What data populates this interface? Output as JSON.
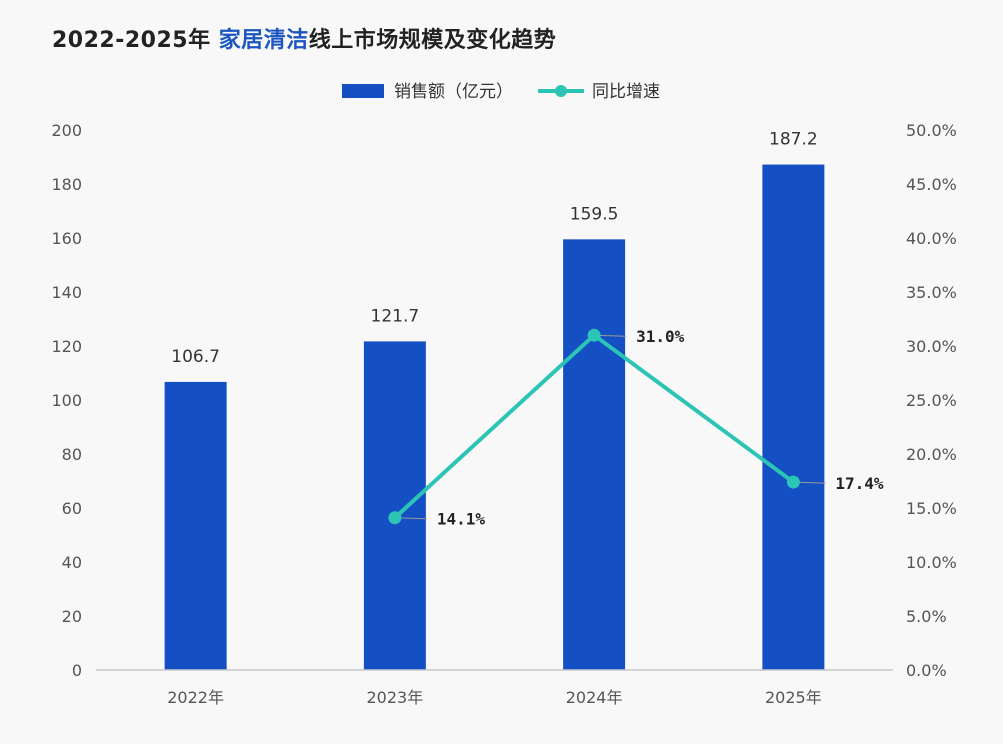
{
  "title": {
    "prefix": "2022-2025年 ",
    "highlight": "家居清洁",
    "suffix": "线上市场规模及变化趋势",
    "highlight_color": "#1a55c0"
  },
  "chart_data": {
    "type": "bar",
    "categories": [
      "2022年",
      "2023年",
      "2024年",
      "2025年"
    ],
    "series": [
      {
        "name": "销售额（亿元）",
        "type": "bar",
        "axis": "left",
        "color": "#1450c4",
        "values": [
          106.7,
          121.7,
          159.5,
          187.2
        ],
        "value_labels": [
          "106.7",
          "121.7",
          "159.5",
          "187.2"
        ]
      },
      {
        "name": "同比增速",
        "type": "line",
        "axis": "right",
        "color": "#2cc4b4",
        "values": [
          null,
          14.1,
          31.0,
          17.4
        ],
        "value_labels": [
          "",
          "14.1%",
          "31.0%",
          "17.4%"
        ]
      }
    ],
    "y_left": {
      "min": 0,
      "max": 200,
      "ticks": [
        "0",
        "20",
        "40",
        "60",
        "80",
        "100",
        "120",
        "140",
        "160",
        "180",
        "200"
      ]
    },
    "y_right": {
      "min": 0,
      "max": 50,
      "ticks": [
        "0.0%",
        "5.0%",
        "10.0%",
        "15.0%",
        "20.0%",
        "25.0%",
        "30.0%",
        "35.0%",
        "40.0%",
        "45.0%",
        "50.0%"
      ]
    },
    "legend_position": "top-center",
    "grid": false
  }
}
